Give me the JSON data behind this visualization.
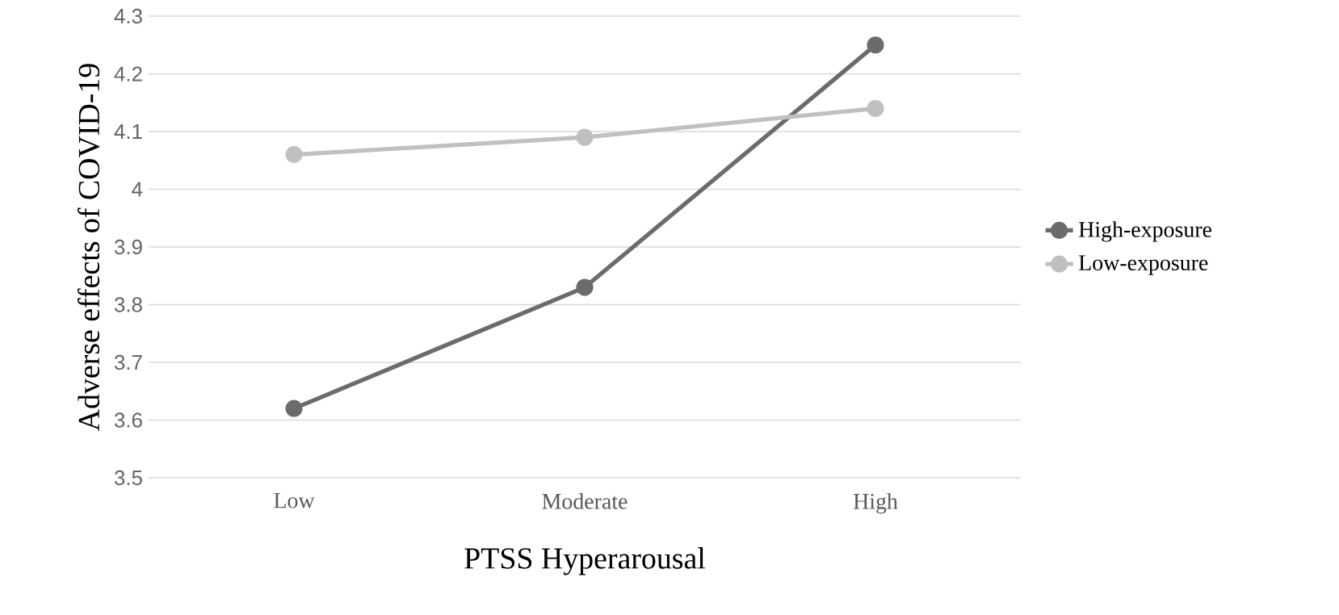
{
  "chart_data": {
    "type": "line",
    "xlabel": "PTSS Hyperarousal",
    "ylabel": "Adverse effects of COVID-19",
    "categories": [
      "Low",
      "Moderate",
      "High"
    ],
    "series": [
      {
        "name": "High-exposure",
        "color": "#6b6b6b",
        "values": [
          3.62,
          3.83,
          4.25
        ]
      },
      {
        "name": "Low-exposure",
        "color": "#c0c0c0",
        "values": [
          4.06,
          4.09,
          4.14
        ]
      }
    ],
    "ylim": [
      3.5,
      4.3
    ],
    "yticks": [
      3.5,
      3.6,
      3.7,
      3.8,
      3.9,
      4,
      4.1,
      4.2,
      4.3
    ],
    "grid": "y",
    "legend": "right",
    "marker": "circle",
    "line_style": "solid"
  }
}
